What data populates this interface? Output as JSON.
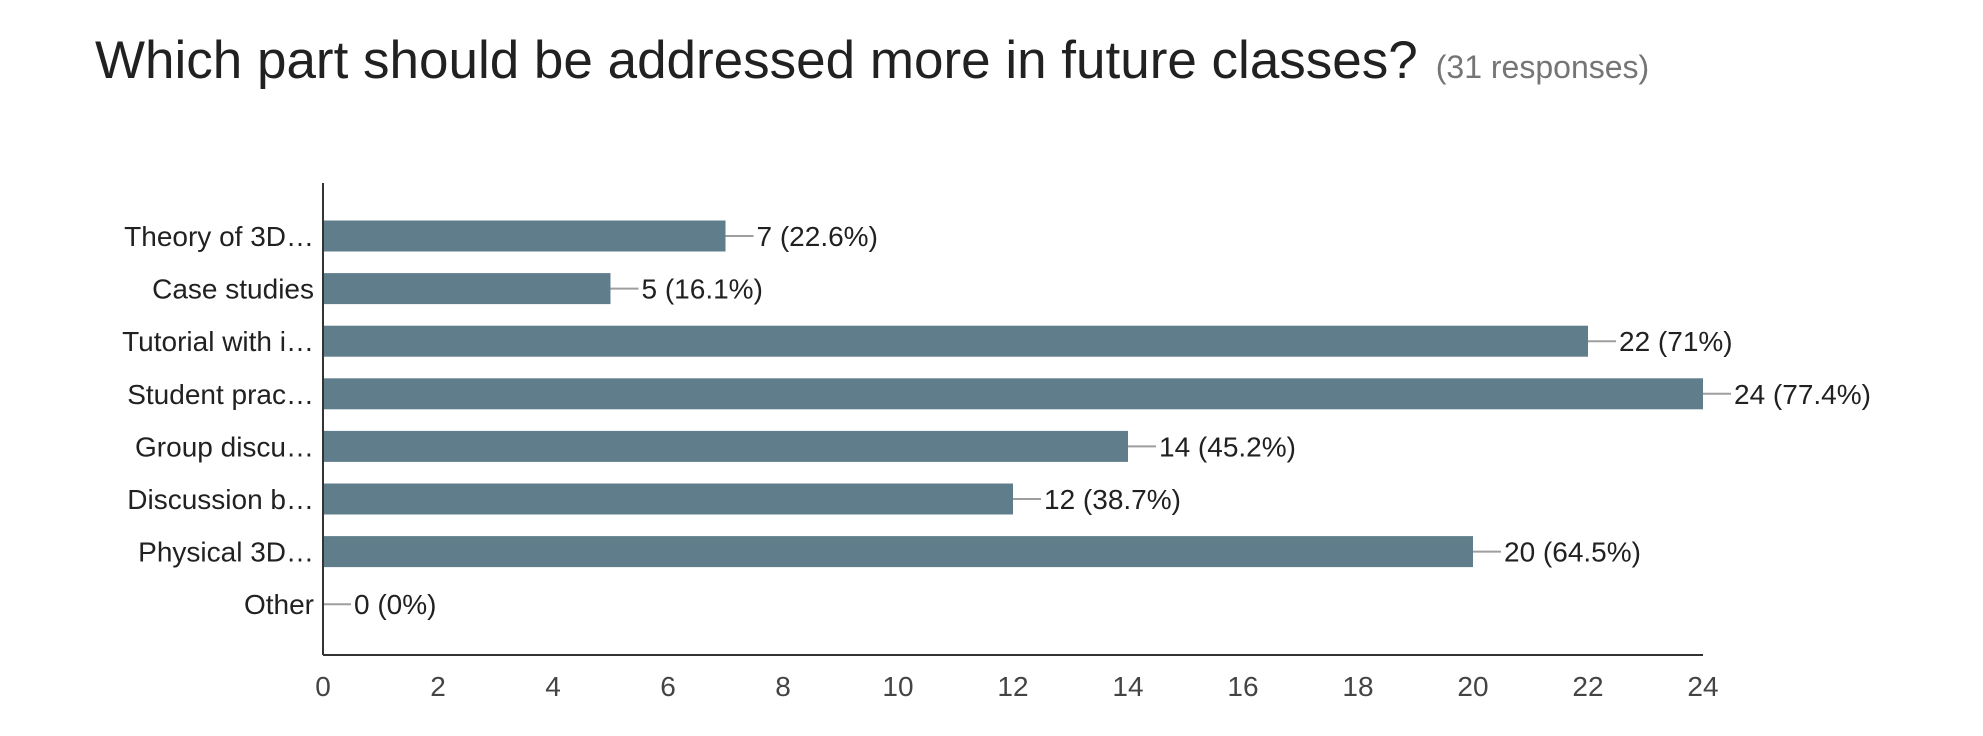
{
  "header": {
    "title": "Which part should be addressed more in future classes?",
    "responses": "(31 responses)"
  },
  "colors": {
    "bar": "#607d8b",
    "axis": "#333333",
    "leader": "#9e9e9e",
    "text": "#212121",
    "tick_text": "#444444"
  },
  "chart_data": {
    "type": "bar",
    "orientation": "horizontal",
    "title": "Which part should be addressed more in future classes?",
    "subtitle": "(31 responses)",
    "categories": [
      "Theory of 3D…",
      "Case studies",
      "Tutorial with i…",
      "Student prac…",
      "Group discu…",
      "Discussion b…",
      "Physical 3D…",
      "Other"
    ],
    "values": [
      7,
      5,
      22,
      24,
      14,
      12,
      20,
      0
    ],
    "data_labels": [
      "7 (22.6%)",
      "5 (16.1%)",
      "22 (71%)",
      "24 (77.4%)",
      "14 (45.2%)",
      "12 (38.7%)",
      "20 (64.5%)",
      "0 (0%)"
    ],
    "xlim": [
      0,
      24
    ],
    "xticks": [
      0,
      2,
      4,
      6,
      8,
      10,
      12,
      14,
      16,
      18,
      20,
      22,
      24
    ],
    "grid": false,
    "legend": "none"
  }
}
